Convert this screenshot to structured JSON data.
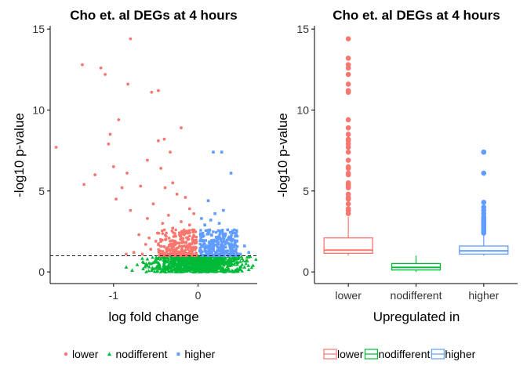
{
  "colors": {
    "lower": "#F8766D",
    "nodifferent": "#00BA38",
    "higher": "#619CFF"
  },
  "chart_data": [
    {
      "type": "scatter",
      "title": "Cho et. al DEGs at 4 hours",
      "xlabel": "log fold change",
      "ylabel": "-log10 p-value",
      "xlim": [
        -1.75,
        0.7
      ],
      "ylim": [
        -0.72,
        15.2
      ],
      "xticks": [
        -1,
        0
      ],
      "yticks": [
        0,
        5,
        10,
        15
      ],
      "threshold_line": 1,
      "grid": false,
      "legend_position": "bottom",
      "series": [
        {
          "name": "lower",
          "shape": "circle",
          "points": [
            [
              -1.68,
              7.7
            ],
            [
              -1.37,
              12.8
            ],
            [
              -1.15,
              12.6
            ],
            [
              -1.1,
              12.2
            ],
            [
              -0.8,
              14.4
            ],
            [
              -0.83,
              11.6
            ],
            [
              -1.35,
              5.4
            ],
            [
              -1.22,
              6.0
            ],
            [
              -1.04,
              8.5
            ],
            [
              -0.94,
              9.4
            ],
            [
              -1.06,
              7.9
            ],
            [
              -1.0,
              6.5
            ],
            [
              -0.84,
              6.1
            ],
            [
              -0.9,
              5.2
            ],
            [
              -0.97,
              4.5
            ],
            [
              -0.8,
              3.8
            ],
            [
              -0.68,
              5.3
            ],
            [
              -0.6,
              6.9
            ],
            [
              -0.55,
              11.1
            ],
            [
              -0.47,
              11.2
            ],
            [
              -0.47,
              8.1
            ],
            [
              -0.4,
              8.2
            ],
            [
              -0.2,
              8.9
            ],
            [
              -0.44,
              6.4
            ],
            [
              -0.33,
              7.4
            ],
            [
              -0.39,
              5.2
            ],
            [
              -0.3,
              5.5
            ],
            [
              -0.25,
              4.8
            ],
            [
              -0.15,
              4.6
            ],
            [
              -0.1,
              3.9
            ],
            [
              -0.53,
              4.2
            ],
            [
              -0.6,
              3.3
            ],
            [
              -0.42,
              3.0
            ],
            [
              -0.35,
              3.5
            ],
            [
              -0.2,
              3.1
            ],
            [
              -0.05,
              3.6
            ],
            [
              -0.7,
              2.3
            ],
            [
              -0.58,
              2.1
            ],
            [
              -0.48,
              2.4
            ],
            [
              -0.38,
              2.0
            ],
            [
              -0.3,
              2.7
            ],
            [
              -0.22,
              2.3
            ],
            [
              -0.12,
              2.0
            ],
            [
              -0.04,
              2.5
            ],
            [
              -0.02,
              1.8
            ],
            [
              -0.08,
              1.4
            ],
            [
              -0.16,
              1.6
            ],
            [
              -0.26,
              1.3
            ],
            [
              -0.36,
              1.5
            ],
            [
              -0.46,
              1.2
            ],
            [
              -0.56,
              1.4
            ],
            [
              -0.66,
              1.1
            ],
            [
              -0.76,
              1.2
            ],
            [
              -0.85,
              1.1
            ],
            [
              -0.62,
              1.7
            ],
            [
              -0.5,
              1.9
            ],
            [
              -0.4,
              1.1
            ],
            [
              -0.18,
              1.2
            ],
            [
              -0.1,
              2.9
            ],
            [
              -0.28,
              1.9
            ]
          ]
        },
        {
          "name": "nodifferent",
          "shape": "triangle",
          "points": [
            [
              -0.72,
              0.45
            ],
            [
              -0.65,
              0.2
            ],
            [
              -0.6,
              0.8
            ],
            [
              -0.55,
              0.1
            ],
            [
              -0.5,
              0.6
            ],
            [
              -0.45,
              0.3
            ],
            [
              -0.4,
              0.85
            ],
            [
              -0.35,
              0.05
            ],
            [
              -0.3,
              0.5
            ],
            [
              -0.25,
              0.2
            ],
            [
              -0.2,
              0.7
            ],
            [
              -0.15,
              0.35
            ],
            [
              -0.1,
              0.9
            ],
            [
              -0.05,
              0.15
            ],
            [
              0.0,
              0.6
            ],
            [
              0.05,
              0.25
            ],
            [
              0.1,
              0.8
            ],
            [
              0.15,
              0.1
            ],
            [
              0.2,
              0.55
            ],
            [
              0.25,
              0.3
            ],
            [
              0.3,
              0.75
            ],
            [
              0.35,
              0.2
            ],
            [
              0.4,
              0.5
            ],
            [
              0.45,
              0.05
            ],
            [
              0.5,
              0.65
            ],
            [
              0.55,
              0.3
            ],
            [
              0.6,
              0.15
            ],
            [
              0.65,
              0.4
            ],
            [
              -0.85,
              0.3
            ],
            [
              -0.78,
              0.1
            ],
            [
              -0.32,
              0.95
            ],
            [
              -0.12,
              0.45
            ],
            [
              0.08,
              0.95
            ],
            [
              0.28,
              0.05
            ],
            [
              0.48,
              0.9
            ],
            [
              -0.58,
              0.55
            ]
          ]
        },
        {
          "name": "higher",
          "shape": "square",
          "points": [
            [
              0.18,
              7.4
            ],
            [
              0.28,
              7.4
            ],
            [
              0.39,
              6.1
            ],
            [
              0.12,
              4.4
            ],
            [
              0.2,
              3.6
            ],
            [
              0.3,
              3.8
            ],
            [
              0.15,
              3.2
            ],
            [
              0.25,
              3.0
            ],
            [
              0.35,
              2.6
            ],
            [
              0.42,
              2.4
            ],
            [
              0.08,
              2.9
            ],
            [
              0.05,
              2.2
            ],
            [
              0.13,
              2.5
            ],
            [
              0.22,
              2.1
            ],
            [
              0.32,
              2.3
            ],
            [
              0.46,
              1.9
            ],
            [
              0.55,
              1.6
            ],
            [
              0.1,
              1.6
            ],
            [
              0.19,
              1.9
            ],
            [
              0.27,
              1.4
            ],
            [
              0.37,
              1.7
            ],
            [
              0.02,
              1.3
            ],
            [
              0.07,
              1.8
            ],
            [
              0.16,
              1.2
            ],
            [
              0.26,
              1.5
            ],
            [
              0.34,
              1.2
            ],
            [
              0.44,
              1.3
            ],
            [
              0.5,
              1.1
            ],
            [
              0.6,
              1.2
            ],
            [
              0.04,
              3.3
            ]
          ]
        }
      ]
    },
    {
      "type": "box",
      "title": "Cho et. al DEGs at 4 hours",
      "xlabel": "Upregulated in",
      "ylabel": "-log10 p-value",
      "categories": [
        "lower",
        "nodifferent",
        "higher"
      ],
      "ylim": [
        -0.72,
        15.2
      ],
      "yticks": [
        0,
        5,
        10,
        15
      ],
      "grid": false,
      "legend_position": "bottom",
      "boxes": [
        {
          "name": "lower",
          "q1": 1.15,
          "median": 1.35,
          "q3": 2.1,
          "whisker_low": 1.0,
          "whisker_high": 3.4,
          "outliers": [
            14.4,
            13.2,
            12.8,
            12.6,
            12.2,
            11.6,
            11.2,
            11.1,
            9.4,
            8.9,
            8.5,
            8.2,
            8.1,
            7.9,
            7.7,
            7.4,
            6.9,
            6.5,
            6.4,
            6.1,
            6.0,
            5.5,
            5.4,
            5.3,
            5.2,
            4.8,
            4.6,
            4.5,
            4.2,
            3.9,
            3.8,
            3.6
          ]
        },
        {
          "name": "nodifferent",
          "q1": 0.12,
          "median": 0.28,
          "q3": 0.52,
          "whisker_low": 0.0,
          "whisker_high": 1.0,
          "outliers": []
        },
        {
          "name": "higher",
          "q1": 1.1,
          "median": 1.3,
          "q3": 1.6,
          "whisker_low": 1.0,
          "whisker_high": 2.3,
          "outliers": [
            7.4,
            7.4,
            6.1,
            4.3,
            4.0,
            3.8,
            3.6,
            3.4,
            3.3,
            3.2,
            3.1,
            3.0,
            2.9,
            2.8,
            2.7,
            2.6,
            2.5,
            2.4
          ]
        }
      ]
    }
  ],
  "legends": [
    {
      "items": [
        "lower",
        "nodifferent",
        "higher"
      ]
    },
    {
      "items": [
        "lower",
        "nodifferent",
        "higher"
      ]
    }
  ]
}
